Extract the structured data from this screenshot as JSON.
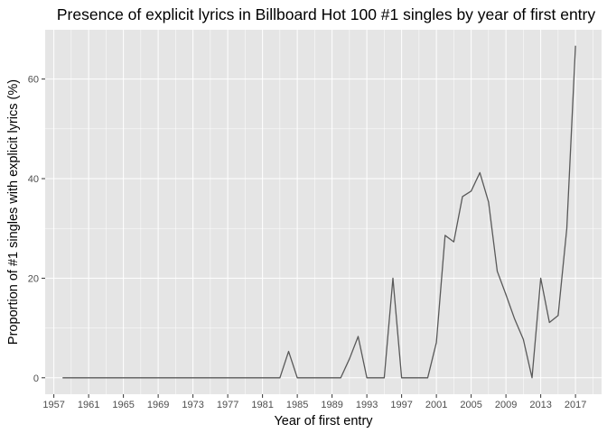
{
  "chart_data": {
    "type": "line",
    "title": "Presence of explicit lyrics in Billboard Hot 100 #1 singles by year of first entry",
    "xlabel": "Year of first entry",
    "ylabel": "Proportion of #1 singles with explicit lyrics (%)",
    "xlim": [
      1956,
      2020
    ],
    "ylim": [
      -3.3,
      69.9
    ],
    "x_ticks": [
      "1957",
      "1961",
      "1965",
      "1969",
      "1973",
      "1977",
      "1981",
      "1985",
      "1989",
      "1993",
      "1997",
      "2001",
      "2005",
      "2009",
      "2013",
      "2017"
    ],
    "y_ticks": [
      "0",
      "20",
      "40",
      "60"
    ],
    "grid": true,
    "legend": "none",
    "colors": {
      "panel": "#e5e5e5",
      "grid": "#ffffff",
      "line": "#595959"
    },
    "x": [
      1958,
      1959,
      1960,
      1961,
      1962,
      1963,
      1964,
      1965,
      1966,
      1967,
      1968,
      1969,
      1970,
      1971,
      1972,
      1973,
      1974,
      1975,
      1976,
      1977,
      1978,
      1979,
      1980,
      1981,
      1982,
      1983,
      1984,
      1985,
      1986,
      1987,
      1988,
      1989,
      1990,
      1991,
      1992,
      1993,
      1994,
      1995,
      1996,
      1997,
      1998,
      1999,
      2000,
      2001,
      2002,
      2003,
      2004,
      2005,
      2006,
      2007,
      2008,
      2009,
      2010,
      2011,
      2012,
      2013,
      2014,
      2015,
      2016,
      2017
    ],
    "series": [
      {
        "values": [
          0,
          0,
          0,
          0,
          0,
          0,
          0,
          0,
          0,
          0,
          0,
          0,
          0,
          0,
          0,
          0,
          0,
          0,
          0,
          0,
          0,
          0,
          0,
          0,
          0,
          0,
          5.3,
          0,
          0,
          0,
          0,
          0,
          0,
          3.8,
          8.3,
          0,
          0,
          0,
          20,
          0,
          0,
          0,
          0,
          7.1,
          28.6,
          27.3,
          36.4,
          37.5,
          41.2,
          35.3,
          21.4,
          16.7,
          11.8,
          7.7,
          0,
          20,
          11.1,
          12.5,
          30,
          66.7
        ]
      }
    ]
  }
}
